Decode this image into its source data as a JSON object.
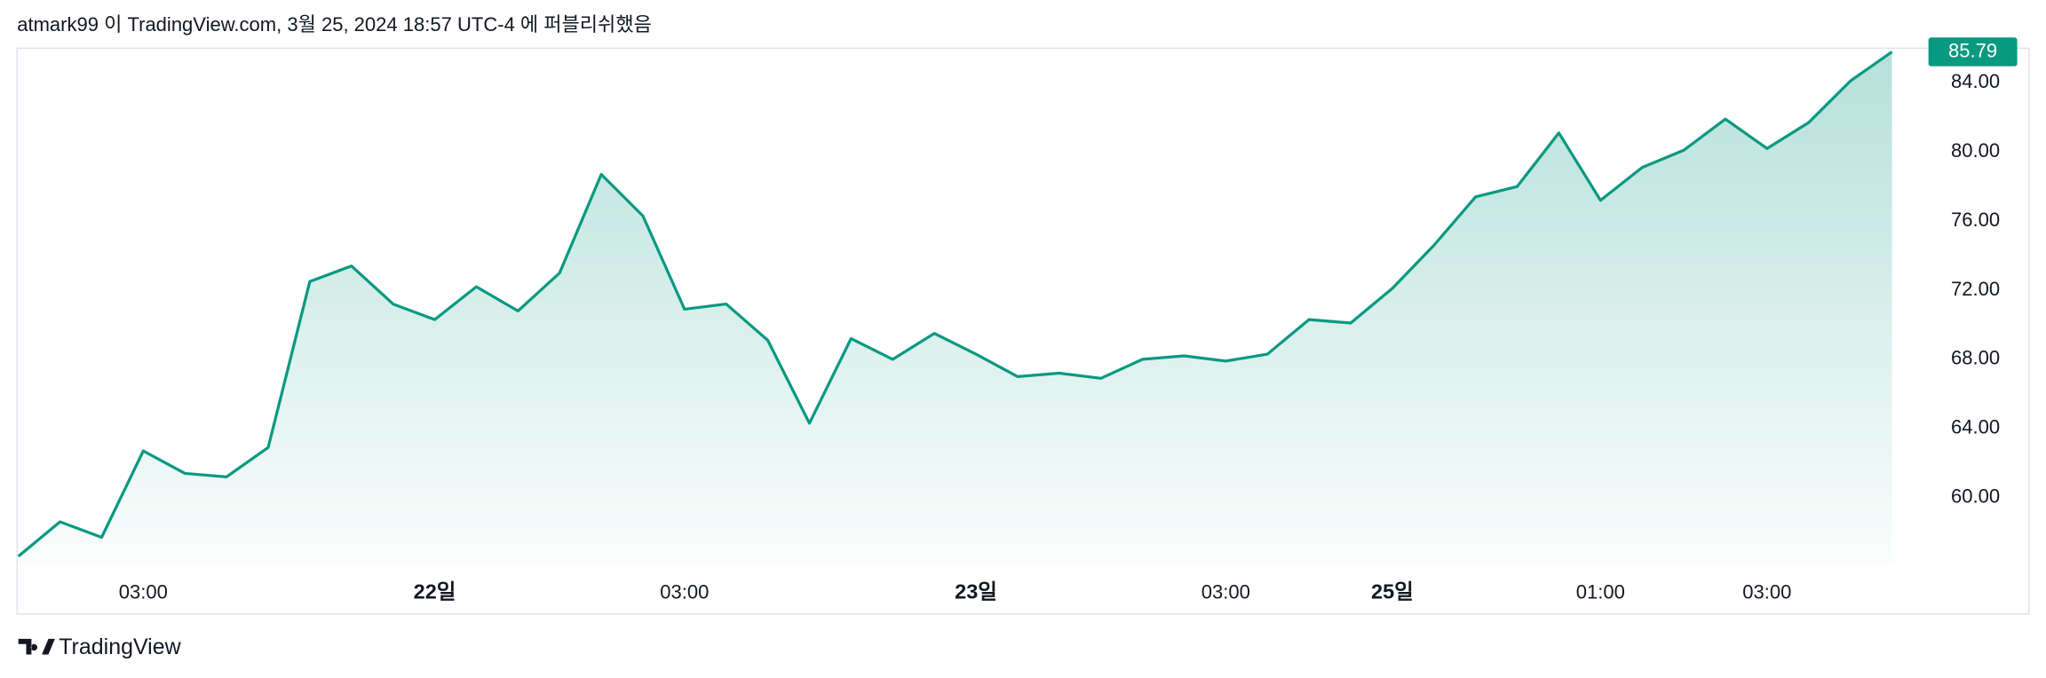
{
  "chart_data": {
    "type": "line",
    "title": "atmark99 이 TradingView.com, 3월 25, 2024 18:57 UTC-4 에 퍼블리쉬했음",
    "categories": [
      null,
      null,
      null,
      "03:00",
      null,
      null,
      null,
      null,
      null,
      null,
      "22일",
      null,
      null,
      null,
      null,
      null,
      "03:00",
      null,
      null,
      null,
      null,
      null,
      null,
      "23일",
      null,
      null,
      null,
      null,
      null,
      "03:00",
      null,
      null,
      null,
      "25일",
      null,
      null,
      null,
      null,
      "01:00",
      null,
      null,
      null,
      "03:00",
      null,
      null,
      null
    ],
    "series": [
      {
        "color": "#089981",
        "values": [
          56.6,
          58.6,
          57.7,
          62.7,
          61.4,
          61.2,
          62.9,
          72.5,
          73.4,
          71.2,
          70.3,
          72.2,
          70.8,
          73.0,
          78.7,
          76.3,
          70.9,
          71.2,
          69.1,
          64.3,
          69.2,
          68.0,
          69.5,
          68.3,
          67.0,
          67.2,
          66.9,
          68.0,
          68.2,
          67.9,
          68.3,
          70.3,
          70.1,
          72.1,
          74.6,
          77.4,
          78.0,
          81.1,
          77.2,
          79.1,
          80.1,
          81.9,
          80.2,
          81.7,
          84.1,
          85.79
        ]
      }
    ],
    "ylim": [
      56.2,
      86.0
    ],
    "yticks": [
      {
        "value": 60,
        "label": "60.00"
      },
      {
        "value": 64,
        "label": "64.00"
      },
      {
        "value": 68,
        "label": "68.00"
      },
      {
        "value": 72,
        "label": "72.00"
      },
      {
        "value": 76,
        "label": "76.00"
      },
      {
        "value": 80,
        "label": "80.00"
      },
      {
        "value": 84,
        "label": "84.00"
      }
    ],
    "grid": false,
    "source": "TradingView"
  }
}
